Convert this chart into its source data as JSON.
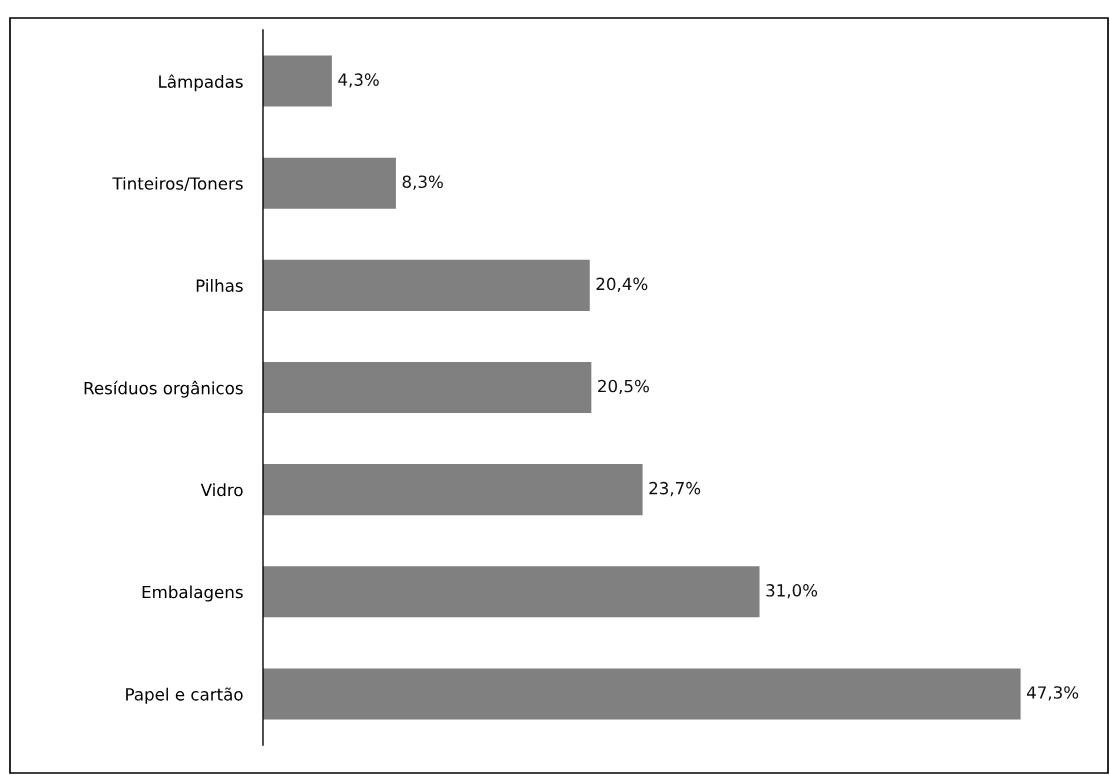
{
  "chart_data": {
    "type": "bar",
    "orientation": "horizontal",
    "categories": [
      "Lâmpadas",
      "Tinteiros/Toners",
      "Pilhas",
      "Resíduos orgânicos",
      "Vidro",
      "Embalagens",
      "Papel e cartão"
    ],
    "values": [
      4.3,
      8.3,
      20.4,
      20.5,
      23.7,
      31.0,
      47.3
    ],
    "value_labels": [
      "4,3%",
      "8,3%",
      "20,4%",
      "20,5%",
      "23,7%",
      "31,0%",
      "47,3%"
    ],
    "color": "#808080",
    "grid": false,
    "legend": false
  }
}
